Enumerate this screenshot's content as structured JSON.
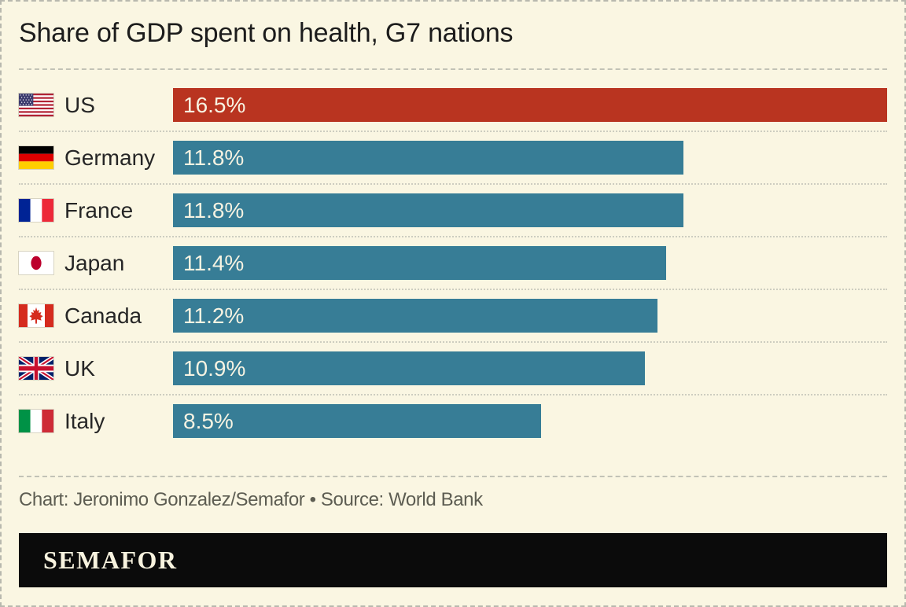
{
  "title": "Share of GDP spent on health, G7 nations",
  "chart_data": {
    "type": "bar",
    "orientation": "horizontal",
    "title": "Share of GDP spent on health, G7 nations",
    "categories": [
      "US",
      "Germany",
      "France",
      "Japan",
      "Canada",
      "UK",
      "Italy"
    ],
    "values": [
      16.5,
      11.8,
      11.8,
      11.4,
      11.2,
      10.9,
      8.5
    ],
    "bar_labels": [
      "16.5%",
      "11.8%",
      "11.8%",
      "11.4%",
      "11.2%",
      "10.9%",
      "8.5%"
    ],
    "flag_icons": [
      "us-flag-icon",
      "germany-flag-icon",
      "france-flag-icon",
      "japan-flag-icon",
      "canada-flag-icon",
      "uk-flag-icon",
      "italy-flag-icon"
    ],
    "bar_colors": [
      "#b93420",
      "#377d96",
      "#377d96",
      "#377d96",
      "#377d96",
      "#377d96",
      "#377d96"
    ],
    "xlim": [
      0,
      16.5
    ],
    "value_label_position": "inside-left",
    "grid": false,
    "legend": false,
    "highlight_category": "US"
  },
  "credits": "Chart: Jeronimo Gonzalez/Semafor • Source: World Bank",
  "footer": {
    "brand": "SEMAFOR"
  },
  "colors": {
    "background": "#faf6e2",
    "bar_teal": "#377d96",
    "bar_red": "#b93420",
    "bar_label_text": "#f7f3e2",
    "separator_gray": "#c2c2b6",
    "footer_background": "#0b0b0b",
    "brand_text": "#f8f3df"
  }
}
